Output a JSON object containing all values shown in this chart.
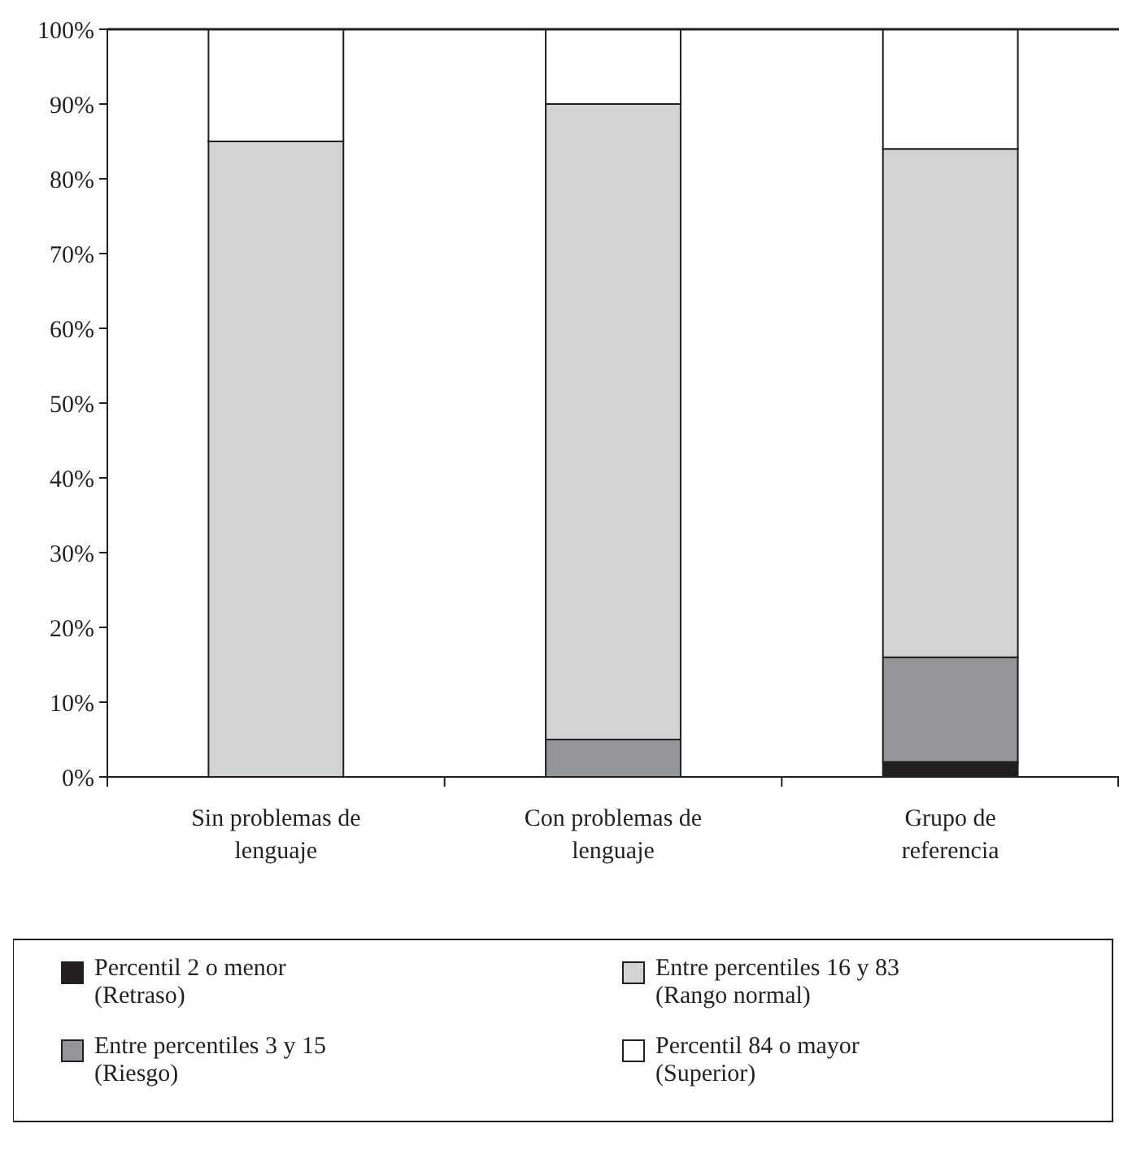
{
  "chart_data": {
    "type": "bar",
    "stacked": true,
    "categories": [
      "Sin problemas de lenguaje",
      "Con problemas de lenguaje",
      "Grupo de referencia"
    ],
    "series": [
      {
        "name": "Percentil 2 o menor (Retraso)",
        "color": "#231f20",
        "values": [
          0,
          0,
          2
        ]
      },
      {
        "name": "Entre percentiles 3 y 15 (Riesgo)",
        "color": "#939598",
        "values": [
          0,
          5,
          14
        ]
      },
      {
        "name": "Entre percentiles 16 y 83 (Rango normal)",
        "color": "#d1d3d4",
        "values": [
          85,
          85,
          68
        ]
      },
      {
        "name": "Percentil 84 o mayor (Superior)",
        "color": "#ffffff",
        "values": [
          15,
          10,
          16
        ]
      }
    ],
    "ylim": [
      0,
      100
    ],
    "yticks": [
      {
        "value": 0,
        "label": "0%"
      },
      {
        "value": 10,
        "label": "10%"
      },
      {
        "value": 20,
        "label": "20%"
      },
      {
        "value": 30,
        "label": "30%"
      },
      {
        "value": 40,
        "label": "40%"
      },
      {
        "value": 50,
        "label": "50%"
      },
      {
        "value": 60,
        "label": "60%"
      },
      {
        "value": 70,
        "label": "70%"
      },
      {
        "value": 80,
        "label": "80%"
      },
      {
        "value": 90,
        "label": "90%"
      },
      {
        "value": 100,
        "label": "100%"
      }
    ],
    "grid": false,
    "legend": "bottom"
  }
}
